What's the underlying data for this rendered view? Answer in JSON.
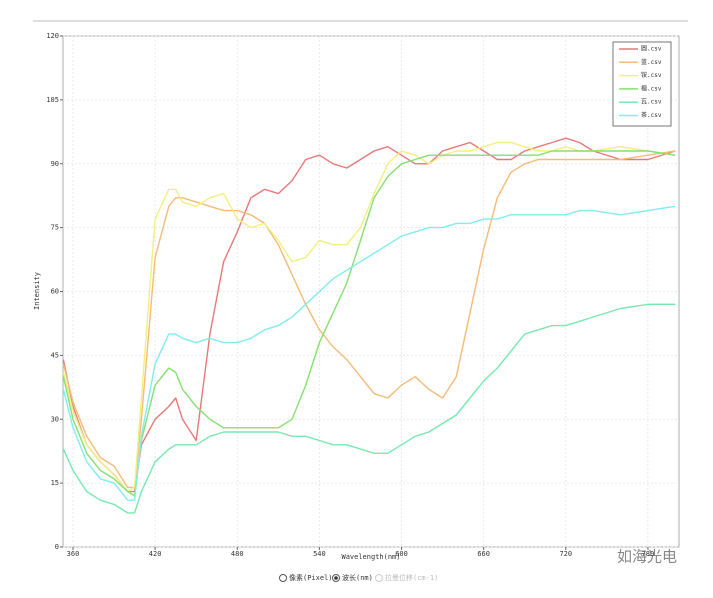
{
  "chart_data": {
    "type": "line",
    "y_label": "Intensity",
    "x_label": "Wavelength(nm)",
    "xlim": [
      352.7,
      802.7
    ],
    "xticks": [
      360,
      420,
      480,
      540,
      600,
      660,
      720,
      780
    ],
    "ylim": [
      0,
      120
    ],
    "yticks": [
      0,
      15,
      30,
      45,
      60,
      75,
      90,
      105,
      120
    ],
    "grid": true,
    "legend": "top-right",
    "x": [
      353,
      360,
      370,
      380,
      390,
      400,
      405,
      410,
      420,
      430,
      435,
      440,
      450,
      460,
      470,
      480,
      490,
      500,
      510,
      520,
      530,
      540,
      550,
      560,
      570,
      580,
      590,
      600,
      610,
      620,
      630,
      640,
      650,
      660,
      670,
      680,
      690,
      700,
      710,
      720,
      730,
      740,
      760,
      780,
      800
    ],
    "series": [
      {
        "name": "圆.csv",
        "color": "#e87878",
        "values": [
          44,
          33,
          24,
          20,
          17,
          13,
          13,
          24,
          30,
          33,
          35,
          30,
          25,
          50,
          67,
          74,
          82,
          84,
          83,
          86,
          91,
          92,
          90,
          89,
          91,
          93,
          94,
          92,
          90,
          90,
          93,
          94,
          95,
          93,
          91,
          91,
          93,
          94,
          95,
          96,
          95,
          93,
          91,
          91,
          93
        ]
      },
      {
        "name": "蓝.csv",
        "color": "#f5bb78",
        "values": [
          43,
          34,
          26,
          21,
          19,
          14,
          14,
          30,
          68,
          80,
          82,
          82,
          81,
          80,
          79,
          79,
          78,
          76,
          71,
          64,
          57,
          51,
          47,
          44,
          40,
          36,
          35,
          38,
          40,
          37,
          35,
          40,
          55,
          70,
          82,
          88,
          90,
          91,
          91,
          91,
          91,
          91,
          91,
          92,
          93
        ]
      },
      {
        "name": "铵.csv",
        "color": "#f2ef80",
        "values": [
          41,
          32,
          24,
          20,
          17,
          13,
          14,
          35,
          77,
          84,
          84,
          81,
          80,
          82,
          83,
          77,
          75,
          76,
          72,
          67,
          68,
          72,
          71,
          71,
          75,
          83,
          90,
          93,
          92,
          90,
          92,
          93,
          93,
          94,
          95,
          95,
          94,
          93,
          93,
          94,
          93,
          93,
          94,
          93,
          92
        ]
      },
      {
        "name": "榴.csv",
        "color": "#86e070",
        "values": [
          40,
          30,
          22,
          18,
          16,
          13,
          12,
          25,
          38,
          42,
          41,
          37,
          33,
          30,
          28,
          28,
          28,
          28,
          28,
          30,
          38,
          48,
          55,
          62,
          72,
          82,
          87,
          90,
          91,
          92,
          92,
          92,
          92,
          92,
          92,
          92,
          92,
          92,
          93,
          93,
          93,
          93,
          93,
          93,
          92
        ]
      },
      {
        "name": "瓦.csv",
        "color": "#78e8b0",
        "values": [
          23,
          18,
          13,
          11,
          10,
          8,
          8,
          13,
          20,
          23,
          24,
          24,
          24,
          26,
          27,
          27,
          27,
          27,
          27,
          26,
          26,
          25,
          24,
          24,
          23,
          22,
          22,
          24,
          26,
          27,
          29,
          31,
          35,
          39,
          42,
          46,
          50,
          51,
          52,
          52,
          53,
          54,
          56,
          57,
          57
        ]
      },
      {
        "name": "茶.csv",
        "color": "#80ecf0",
        "values": [
          37,
          28,
          20,
          16,
          15,
          11,
          11,
          26,
          43,
          50,
          50,
          49,
          48,
          49,
          48,
          48,
          49,
          51,
          52,
          54,
          57,
          60,
          63,
          65,
          67,
          69,
          71,
          73,
          74,
          75,
          75,
          76,
          76,
          77,
          77,
          78,
          78,
          78,
          78,
          78,
          79,
          79,
          78,
          79,
          80
        ]
      }
    ]
  },
  "controls": {
    "options": [
      "像素(Pixel)",
      "波长(nm)",
      "拉曼位移(cm-1)"
    ],
    "selected": 1
  },
  "watermark": "如海光电"
}
